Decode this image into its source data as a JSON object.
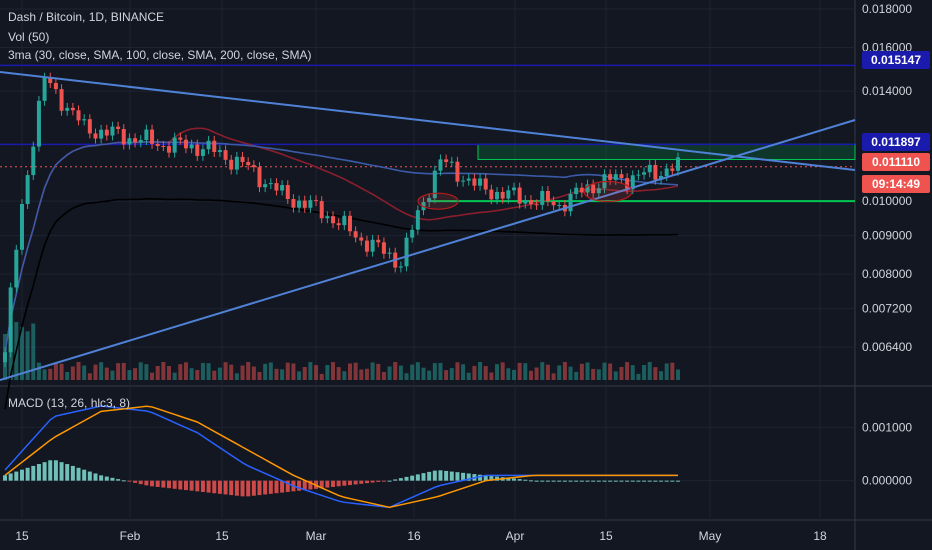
{
  "header": {
    "title": "Dash / Bitcoin, 1D, BINANCE",
    "vol": "Vol (50)",
    "ma": "3ma (30, close, SMA, 100, close, SMA, 200, close, SMA)",
    "macd": "MACD (13, 26, hlc3, 8)"
  },
  "price_tags": {
    "upper_line": "0.015147",
    "resistance": "0.011897",
    "last_price": "0.011110",
    "countdown": "09:14:49"
  },
  "colors": {
    "background": "#131722",
    "up": "#26a69a",
    "down": "#ef5350",
    "hline_blue": "#1a1aad",
    "trend_blue": "#4f82d6",
    "support_green": "#00c853",
    "ma30": "#8b1e2d",
    "ma100": "#3b5aa8",
    "ma200": "#000000",
    "macd_line": "#2962ff",
    "signal_line": "#ff9800"
  },
  "chart_data": [
    {
      "type": "candlestick",
      "title": "Dash / Bitcoin, 1D, BINANCE",
      "x_ticks": [
        "15",
        "Feb",
        "15",
        "Mar",
        "16",
        "Apr",
        "15",
        "May",
        "18"
      ],
      "y_ticks": [
        "0.018000",
        "0.016000",
        "0.015147",
        "0.014000",
        "0.011897",
        "0.011110",
        "0.010000",
        "0.009000",
        "0.008000",
        "0.007200",
        "0.006400"
      ],
      "ylim": [
        0.0057,
        0.0185
      ],
      "y_scale": "log",
      "horizontal_lines": [
        0.015147,
        0.011897,
        0.01
      ],
      "resistance_zone": [
        0.01136,
        0.0119
      ],
      "ohlc_close_samples": [
        0.0063,
        0.0145,
        0.0125,
        0.0122,
        0.0119,
        0.0118,
        0.0112,
        0.0102,
        0.0097,
        0.0089,
        0.0083,
        0.0113,
        0.0104,
        0.0101,
        0.0099,
        0.0106,
        0.0108,
        0.0111
      ],
      "moving_averages": [
        "SMA 30",
        "SMA 100",
        "SMA 200"
      ]
    },
    {
      "type": "line",
      "title": "MACD (13, 26, hlc3, 8)",
      "y_ticks": [
        "0.001000",
        "0.000000"
      ],
      "ylim": [
        -0.0007,
        0.0017
      ],
      "series": [
        {
          "name": "MACD",
          "values": [
            0.0002,
            0.0012,
            0.0014,
            0.0013,
            0.0009,
            0.0003,
            -0.0001,
            -0.0004,
            -0.0005,
            -0.0001,
            0.0001,
            0.0001,
            0.0001,
            0.0001,
            0.0001
          ]
        },
        {
          "name": "Signal",
          "values": [
            0.0001,
            0.0008,
            0.0013,
            0.0014,
            0.0011,
            0.0006,
            0.0001,
            -0.0003,
            -0.0005,
            -0.0003,
            0.0,
            0.0001,
            0.0001,
            0.0001,
            0.0001
          ]
        }
      ]
    }
  ]
}
